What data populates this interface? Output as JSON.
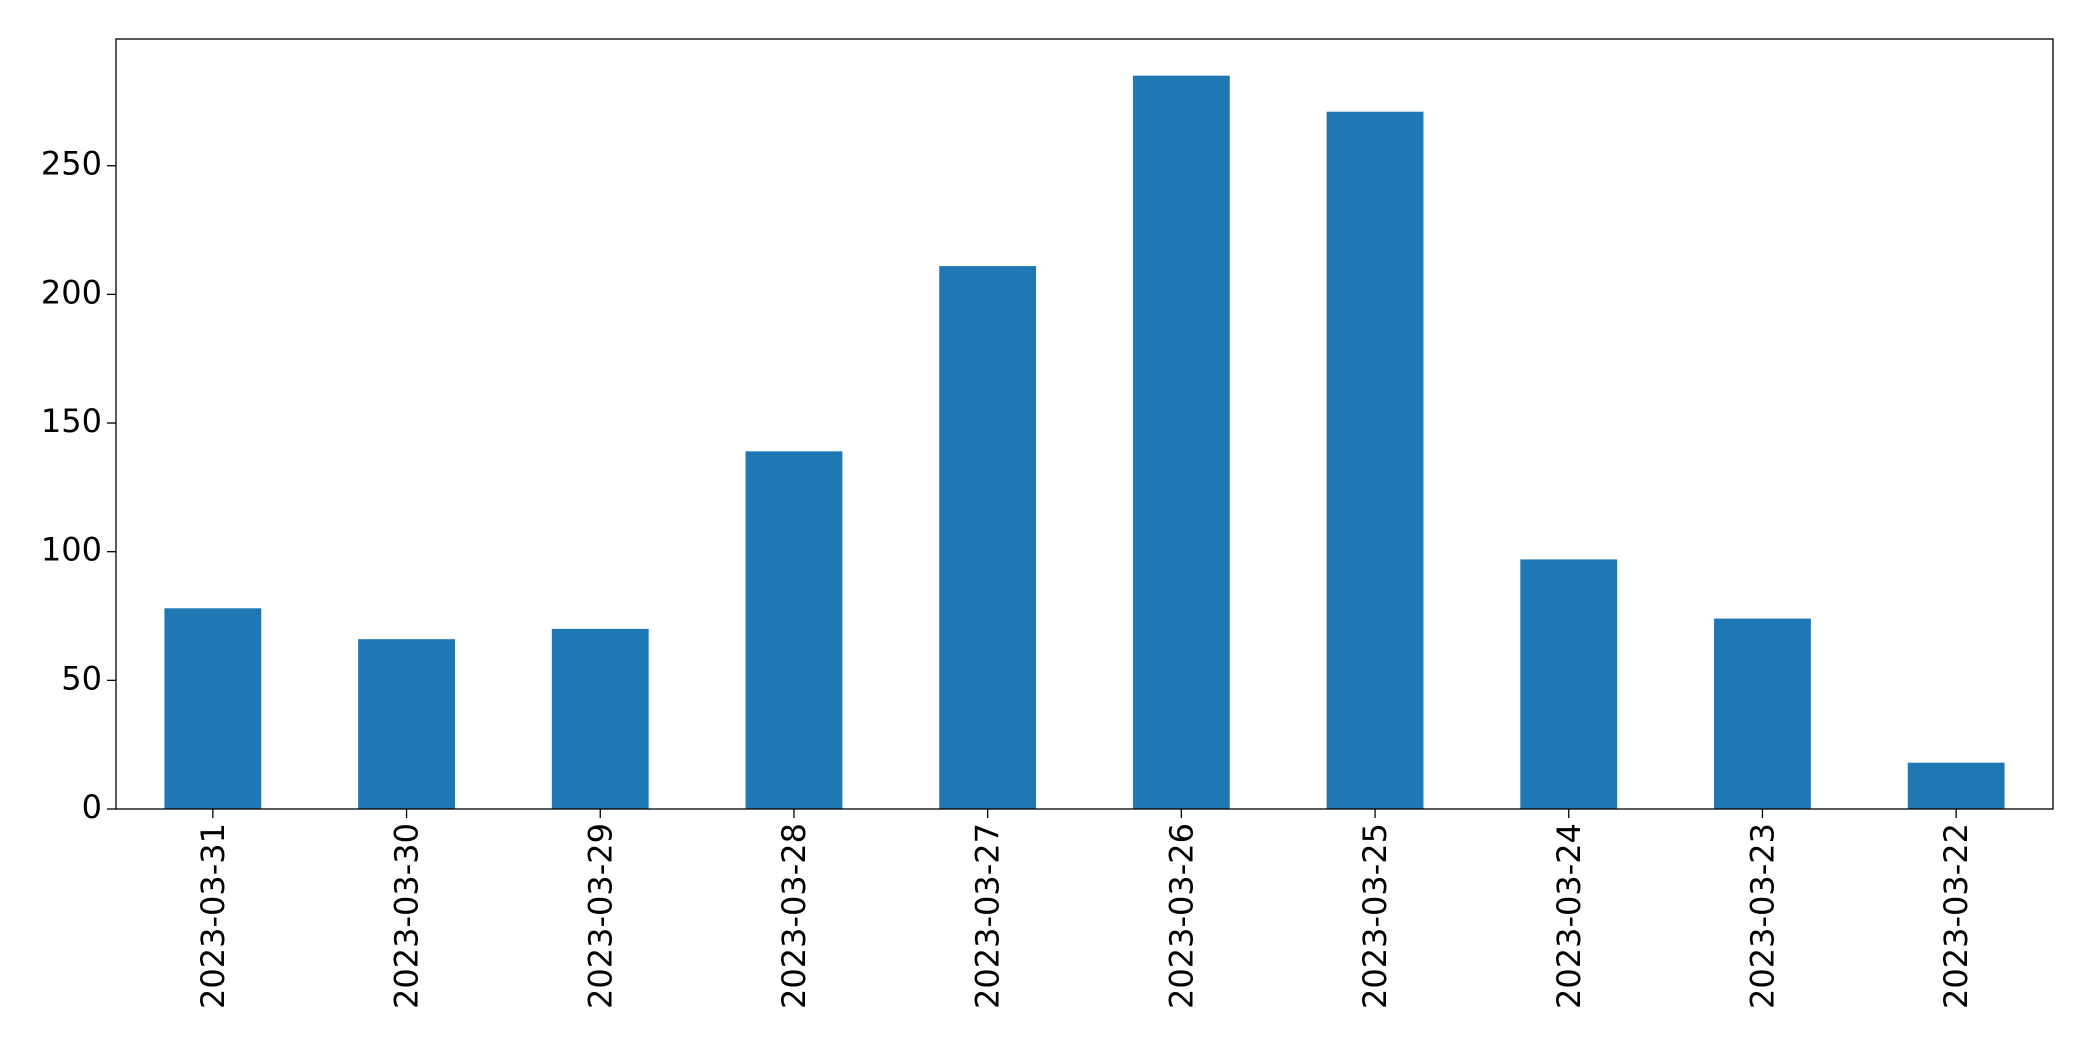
{
  "chart_data": {
    "type": "bar",
    "categories": [
      "2023-03-31",
      "2023-03-30",
      "2023-03-29",
      "2023-03-28",
      "2023-03-27",
      "2023-03-26",
      "2023-03-25",
      "2023-03-24",
      "2023-03-23",
      "2023-03-22"
    ],
    "values": [
      78,
      66,
      70,
      139,
      211,
      285,
      271,
      97,
      74,
      18
    ],
    "color": "#1f77b4",
    "ylim": [
      0,
      299.25
    ],
    "yticks": [
      0,
      50,
      100,
      150,
      200,
      250
    ],
    "grid": false
  }
}
